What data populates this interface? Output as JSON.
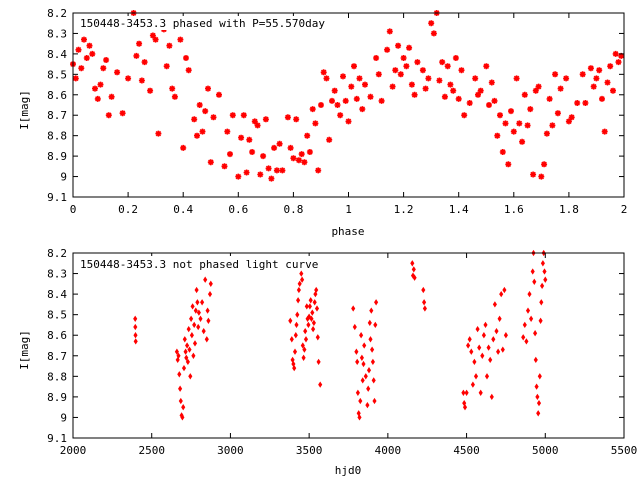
{
  "chart_data": [
    {
      "type": "scatter",
      "title": "150448-3453.3 phased with P=55.570day",
      "xlabel": "phase",
      "ylabel": "I[mag]",
      "xlim": [
        0,
        2
      ],
      "ylim": [
        9.1,
        8.2
      ],
      "y_inverted": true,
      "grid": false,
      "marker_color": "#ff0000",
      "marker": "star",
      "x_ticks": [
        "0",
        "0.2",
        "0.4",
        "0.6",
        "0.8",
        "1",
        "1.2",
        "1.4",
        "1.6",
        "1.8",
        "2"
      ],
      "y_ticks": [
        "8.2",
        "8.3",
        "8.4",
        "8.5",
        "8.6",
        "8.7",
        "8.8",
        "8.9",
        "9",
        "9.1"
      ],
      "x_tick_values": [
        0,
        0.2,
        0.4,
        0.6,
        0.8,
        1,
        1.2,
        1.4,
        1.6,
        1.8,
        2
      ],
      "y_tick_values": [
        8.2,
        8.3,
        8.4,
        8.5,
        8.6,
        8.7,
        8.8,
        8.9,
        9.0,
        9.1
      ],
      "points": [
        [
          0.0,
          8.45
        ],
        [
          0.01,
          8.52
        ],
        [
          0.02,
          8.38
        ],
        [
          0.03,
          8.47
        ],
        [
          0.04,
          8.33
        ],
        [
          0.05,
          8.42
        ],
        [
          0.06,
          8.36
        ],
        [
          0.07,
          8.4
        ],
        [
          0.08,
          8.57
        ],
        [
          0.09,
          8.62
        ],
        [
          0.1,
          8.55
        ],
        [
          0.11,
          8.47
        ],
        [
          0.12,
          8.43
        ],
        [
          0.13,
          8.7
        ],
        [
          0.14,
          8.61
        ],
        [
          0.16,
          8.49
        ],
        [
          0.18,
          8.69
        ],
        [
          0.2,
          8.52
        ],
        [
          0.21,
          8.26
        ],
        [
          0.22,
          8.2
        ],
        [
          0.23,
          8.41
        ],
        [
          0.24,
          8.35
        ],
        [
          0.25,
          8.53
        ],
        [
          0.26,
          8.44
        ],
        [
          0.28,
          8.58
        ],
        [
          0.29,
          8.31
        ],
        [
          0.3,
          8.33
        ],
        [
          0.31,
          8.79
        ],
        [
          0.33,
          8.28
        ],
        [
          0.34,
          8.46
        ],
        [
          0.35,
          8.36
        ],
        [
          0.36,
          8.57
        ],
        [
          0.37,
          8.61
        ],
        [
          0.39,
          8.33
        ],
        [
          0.4,
          8.86
        ],
        [
          0.41,
          8.42
        ],
        [
          0.42,
          8.48
        ],
        [
          0.44,
          8.72
        ],
        [
          0.45,
          8.8
        ],
        [
          0.46,
          8.65
        ],
        [
          0.47,
          8.78
        ],
        [
          0.48,
          8.68
        ],
        [
          0.49,
          8.57
        ],
        [
          0.5,
          8.93
        ],
        [
          0.51,
          8.71
        ],
        [
          0.53,
          8.6
        ],
        [
          0.55,
          8.95
        ],
        [
          0.56,
          8.78
        ],
        [
          0.57,
          8.89
        ],
        [
          0.58,
          8.7
        ],
        [
          0.6,
          9.0
        ],
        [
          0.61,
          8.81
        ],
        [
          0.62,
          8.7
        ],
        [
          0.63,
          8.98
        ],
        [
          0.64,
          8.82
        ],
        [
          0.65,
          8.88
        ],
        [
          0.66,
          8.73
        ],
        [
          0.67,
          8.75
        ],
        [
          0.68,
          8.99
        ],
        [
          0.69,
          8.9
        ],
        [
          0.7,
          8.72
        ],
        [
          0.71,
          8.96
        ],
        [
          0.72,
          9.01
        ],
        [
          0.73,
          8.86
        ],
        [
          0.74,
          8.97
        ],
        [
          0.75,
          8.84
        ],
        [
          0.76,
          8.97
        ],
        [
          0.78,
          8.71
        ],
        [
          0.79,
          8.86
        ],
        [
          0.8,
          8.91
        ],
        [
          0.81,
          8.72
        ],
        [
          0.82,
          8.92
        ],
        [
          0.83,
          8.89
        ],
        [
          0.84,
          8.93
        ],
        [
          0.85,
          8.8
        ],
        [
          0.86,
          8.88
        ],
        [
          0.87,
          8.67
        ],
        [
          0.88,
          8.74
        ],
        [
          0.89,
          8.97
        ],
        [
          0.9,
          8.65
        ],
        [
          0.91,
          8.49
        ],
        [
          0.92,
          8.52
        ],
        [
          0.93,
          8.82
        ],
        [
          0.94,
          8.63
        ],
        [
          0.95,
          8.58
        ],
        [
          0.96,
          8.65
        ],
        [
          0.97,
          8.7
        ],
        [
          0.98,
          8.51
        ],
        [
          0.99,
          8.63
        ],
        [
          1.0,
          8.73
        ],
        [
          1.01,
          8.56
        ],
        [
          1.02,
          8.46
        ],
        [
          1.03,
          8.62
        ],
        [
          1.04,
          8.52
        ],
        [
          1.05,
          8.67
        ],
        [
          1.06,
          8.55
        ],
        [
          1.08,
          8.61
        ],
        [
          1.1,
          8.42
        ],
        [
          1.11,
          8.5
        ],
        [
          1.12,
          8.63
        ],
        [
          1.14,
          8.38
        ],
        [
          1.15,
          8.29
        ],
        [
          1.16,
          8.56
        ],
        [
          1.17,
          8.48
        ],
        [
          1.18,
          8.36
        ],
        [
          1.19,
          8.5
        ],
        [
          1.2,
          8.42
        ],
        [
          1.21,
          8.46
        ],
        [
          1.22,
          8.37
        ],
        [
          1.23,
          8.55
        ],
        [
          1.24,
          8.6
        ],
        [
          1.25,
          8.44
        ],
        [
          1.27,
          8.48
        ],
        [
          1.28,
          8.57
        ],
        [
          1.29,
          8.52
        ],
        [
          1.3,
          8.25
        ],
        [
          1.31,
          8.3
        ],
        [
          1.32,
          8.2
        ],
        [
          1.33,
          8.53
        ],
        [
          1.34,
          8.44
        ],
        [
          1.35,
          8.61
        ],
        [
          1.36,
          8.46
        ],
        [
          1.37,
          8.55
        ],
        [
          1.38,
          8.58
        ],
        [
          1.39,
          8.42
        ],
        [
          1.4,
          8.62
        ],
        [
          1.41,
          8.48
        ],
        [
          1.42,
          8.7
        ],
        [
          1.44,
          8.64
        ],
        [
          1.46,
          8.52
        ],
        [
          1.47,
          8.6
        ],
        [
          1.48,
          8.58
        ],
        [
          1.5,
          8.46
        ],
        [
          1.51,
          8.65
        ],
        [
          1.52,
          8.54
        ],
        [
          1.53,
          8.63
        ],
        [
          1.54,
          8.8
        ],
        [
          1.55,
          8.7
        ],
        [
          1.56,
          8.88
        ],
        [
          1.57,
          8.74
        ],
        [
          1.58,
          8.94
        ],
        [
          1.59,
          8.68
        ],
        [
          1.6,
          8.78
        ],
        [
          1.61,
          8.52
        ],
        [
          1.62,
          8.74
        ],
        [
          1.63,
          8.83
        ],
        [
          1.64,
          8.6
        ],
        [
          1.65,
          8.75
        ],
        [
          1.66,
          8.67
        ],
        [
          1.67,
          8.99
        ],
        [
          1.68,
          8.58
        ],
        [
          1.69,
          8.56
        ],
        [
          1.7,
          9.0
        ],
        [
          1.71,
          8.94
        ],
        [
          1.72,
          8.79
        ],
        [
          1.73,
          8.62
        ],
        [
          1.74,
          8.75
        ],
        [
          1.75,
          8.5
        ],
        [
          1.76,
          8.69
        ],
        [
          1.77,
          8.57
        ],
        [
          1.79,
          8.52
        ],
        [
          1.8,
          8.73
        ],
        [
          1.81,
          8.71
        ],
        [
          1.83,
          8.64
        ],
        [
          1.85,
          8.5
        ],
        [
          1.86,
          8.64
        ],
        [
          1.88,
          8.47
        ],
        [
          1.89,
          8.56
        ],
        [
          1.9,
          8.52
        ],
        [
          1.91,
          8.48
        ],
        [
          1.92,
          8.62
        ],
        [
          1.93,
          8.78
        ],
        [
          1.94,
          8.54
        ],
        [
          1.95,
          8.46
        ],
        [
          1.96,
          8.58
        ],
        [
          1.97,
          8.4
        ],
        [
          1.98,
          8.44
        ],
        [
          1.99,
          8.41
        ]
      ]
    },
    {
      "type": "scatter",
      "title": "150448-3453.3 not phased light curve",
      "xlabel": "hjd0",
      "ylabel": "I[mag]",
      "xlim": [
        2000,
        5500
      ],
      "ylim": [
        9.1,
        8.2
      ],
      "y_inverted": true,
      "grid": false,
      "marker_color": "#ff0000",
      "marker": "diamond",
      "x_ticks": [
        "2000",
        "2500",
        "3000",
        "3500",
        "4000",
        "4500",
        "5000",
        "5500"
      ],
      "y_ticks": [
        "8.2",
        "8.3",
        "8.4",
        "8.5",
        "8.6",
        "8.7",
        "8.8",
        "8.9",
        "9",
        "9.1"
      ],
      "x_tick_values": [
        2000,
        2500,
        3000,
        3500,
        4000,
        4500,
        5000,
        5500
      ],
      "y_tick_values": [
        8.2,
        8.3,
        8.4,
        8.5,
        8.6,
        8.7,
        8.8,
        8.9,
        9.0,
        9.1
      ],
      "points": [
        [
          2395,
          8.52
        ],
        [
          2396,
          8.56
        ],
        [
          2397,
          8.6
        ],
        [
          2398,
          8.63
        ],
        [
          2660,
          8.68
        ],
        [
          2665,
          8.72
        ],
        [
          2670,
          8.7
        ],
        [
          2675,
          8.79
        ],
        [
          2680,
          8.86
        ],
        [
          2685,
          8.92
        ],
        [
          2690,
          8.99
        ],
        [
          2695,
          9.0
        ],
        [
          2700,
          8.95
        ],
        [
          2705,
          8.76
        ],
        [
          2710,
          8.62
        ],
        [
          2715,
          8.68
        ],
        [
          2720,
          8.71
        ],
        [
          2725,
          8.65
        ],
        [
          2730,
          8.73
        ],
        [
          2735,
          8.57
        ],
        [
          2740,
          8.67
        ],
        [
          2745,
          8.8
        ],
        [
          2750,
          8.52
        ],
        [
          2755,
          8.6
        ],
        [
          2760,
          8.46
        ],
        [
          2765,
          8.7
        ],
        [
          2770,
          8.55
        ],
        [
          2775,
          8.64
        ],
        [
          2780,
          8.48
        ],
        [
          2785,
          8.38
        ],
        [
          2790,
          8.44
        ],
        [
          2795,
          8.56
        ],
        [
          2800,
          8.49
        ],
        [
          2810,
          8.52
        ],
        [
          2820,
          8.44
        ],
        [
          2830,
          8.58
        ],
        [
          2840,
          8.33
        ],
        [
          2850,
          8.62
        ],
        [
          2855,
          8.48
        ],
        [
          2860,
          8.53
        ],
        [
          2870,
          8.4
        ],
        [
          2875,
          8.35
        ],
        [
          3380,
          8.53
        ],
        [
          3390,
          8.62
        ],
        [
          3395,
          8.72
        ],
        [
          3400,
          8.74
        ],
        [
          3405,
          8.76
        ],
        [
          3410,
          8.68
        ],
        [
          3415,
          8.6
        ],
        [
          3420,
          8.55
        ],
        [
          3425,
          8.5
        ],
        [
          3430,
          8.43
        ],
        [
          3435,
          8.38
        ],
        [
          3440,
          8.35
        ],
        [
          3445,
          8.26
        ],
        [
          3450,
          8.3
        ],
        [
          3455,
          8.33
        ],
        [
          3460,
          8.65
        ],
        [
          3465,
          8.71
        ],
        [
          3470,
          8.67
        ],
        [
          3475,
          8.58
        ],
        [
          3480,
          8.62
        ],
        [
          3485,
          8.46
        ],
        [
          3490,
          8.52
        ],
        [
          3495,
          8.55
        ],
        [
          3500,
          8.51
        ],
        [
          3505,
          8.46
        ],
        [
          3510,
          8.43
        ],
        [
          3515,
          8.52
        ],
        [
          3520,
          8.49
        ],
        [
          3525,
          8.57
        ],
        [
          3530,
          8.54
        ],
        [
          3535,
          8.44
        ],
        [
          3540,
          8.4
        ],
        [
          3545,
          8.38
        ],
        [
          3550,
          8.47
        ],
        [
          3555,
          8.61
        ],
        [
          3560,
          8.73
        ],
        [
          3570,
          8.84
        ],
        [
          3780,
          8.47
        ],
        [
          3790,
          8.56
        ],
        [
          3800,
          8.68
        ],
        [
          3805,
          8.73
        ],
        [
          3810,
          8.88
        ],
        [
          3815,
          8.98
        ],
        [
          3820,
          9.0
        ],
        [
          3825,
          8.92
        ],
        [
          3830,
          8.6
        ],
        [
          3835,
          8.71
        ],
        [
          3840,
          8.82
        ],
        [
          3845,
          8.74
        ],
        [
          3850,
          8.65
        ],
        [
          3860,
          8.8
        ],
        [
          3870,
          8.94
        ],
        [
          3875,
          8.86
        ],
        [
          3880,
          8.77
        ],
        [
          3885,
          8.54
        ],
        [
          3890,
          8.62
        ],
        [
          3895,
          8.48
        ],
        [
          3900,
          8.67
        ],
        [
          3905,
          8.73
        ],
        [
          3910,
          8.82
        ],
        [
          3915,
          8.92
        ],
        [
          3920,
          8.55
        ],
        [
          3925,
          8.44
        ],
        [
          4155,
          8.25
        ],
        [
          4160,
          8.31
        ],
        [
          4165,
          8.28
        ],
        [
          4170,
          8.32
        ],
        [
          4225,
          8.38
        ],
        [
          4230,
          8.44
        ],
        [
          4235,
          8.47
        ],
        [
          4480,
          8.88
        ],
        [
          4485,
          8.93
        ],
        [
          4490,
          8.95
        ],
        [
          4500,
          8.88
        ],
        [
          4510,
          8.65
        ],
        [
          4520,
          8.62
        ],
        [
          4530,
          8.68
        ],
        [
          4540,
          8.84
        ],
        [
          4550,
          8.73
        ],
        [
          4560,
          8.8
        ],
        [
          4570,
          8.57
        ],
        [
          4580,
          8.66
        ],
        [
          4590,
          8.88
        ],
        [
          4600,
          8.7
        ],
        [
          4610,
          8.6
        ],
        [
          4620,
          8.55
        ],
        [
          4630,
          8.8
        ],
        [
          4640,
          8.66
        ],
        [
          4650,
          8.72
        ],
        [
          4660,
          8.9
        ],
        [
          4670,
          8.62
        ],
        [
          4680,
          8.45
        ],
        [
          4690,
          8.58
        ],
        [
          4700,
          8.68
        ],
        [
          4710,
          8.52
        ],
        [
          4720,
          8.4
        ],
        [
          4730,
          8.67
        ],
        [
          4740,
          8.38
        ],
        [
          4750,
          8.6
        ],
        [
          4860,
          8.61
        ],
        [
          4870,
          8.55
        ],
        [
          4880,
          8.63
        ],
        [
          4890,
          8.48
        ],
        [
          4900,
          8.4
        ],
        [
          4910,
          8.52
        ],
        [
          4920,
          8.29
        ],
        [
          4925,
          8.2
        ],
        [
          4930,
          8.34
        ],
        [
          4935,
          8.59
        ],
        [
          4940,
          8.72
        ],
        [
          4945,
          8.85
        ],
        [
          4950,
          8.9
        ],
        [
          4955,
          8.98
        ],
        [
          4960,
          8.93
        ],
        [
          4965,
          8.8
        ],
        [
          4970,
          8.53
        ],
        [
          4975,
          8.44
        ],
        [
          4980,
          8.36
        ],
        [
          4985,
          8.25
        ],
        [
          4990,
          8.2
        ],
        [
          4995,
          8.29
        ],
        [
          5000,
          8.33
        ]
      ]
    }
  ]
}
